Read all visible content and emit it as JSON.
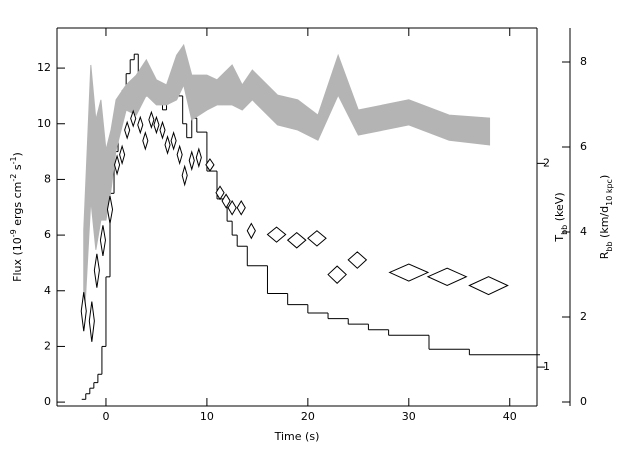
{
  "chart_data": [
    {
      "type": "histogram",
      "bins": [
        -2.4,
        -2,
        -1.6,
        -1.2,
        -0.8,
        -0.4,
        0,
        0.4,
        0.8,
        1.2,
        1.6,
        2,
        2.4,
        2.8,
        3.2,
        3.6,
        4,
        4.4,
        4.8,
        5.2,
        5.6,
        6,
        6.4,
        6.8,
        7.2,
        7.6,
        8,
        8.5,
        9,
        10,
        11,
        12,
        12.5,
        13,
        14,
        16,
        18,
        20,
        22,
        24,
        26,
        28,
        32,
        36,
        43
      ],
      "values": [
        0.1,
        0.3,
        0.5,
        0.7,
        1.0,
        2.0,
        4.5,
        7.5,
        9.0,
        10.5,
        11.2,
        11.8,
        12.3,
        12.5,
        11.8,
        11.5,
        11.0,
        11.5,
        10.8,
        11.2,
        10.5,
        10.9,
        11.5,
        11.8,
        11.0,
        10.0,
        9.5,
        10.2,
        9.7,
        8.3,
        7.3,
        6.5,
        6.0,
        5.6,
        4.9,
        3.9,
        3.5,
        3.2,
        3.0,
        2.8,
        2.6,
        2.4,
        1.9,
        1.7
      ],
      "color": "#000000",
      "xlim": [
        -4.85,
        42.7
      ],
      "xticks": [
        0,
        10,
        20,
        30,
        40
      ],
      "xlabel": "Time (s)",
      "ylim": [
        -0.14,
        13.44
      ],
      "yticks": [
        0,
        2,
        4,
        6,
        8,
        10,
        12
      ],
      "ylabel": [
        "Flux (10",
        "-9",
        " ergs cm",
        "-2",
        " s",
        "-1",
        ")"
      ]
    },
    {
      "type": "band",
      "x": [
        -2.2,
        -1.5,
        -1,
        -0.5,
        0,
        0.5,
        1,
        2,
        3,
        4,
        5,
        6,
        7,
        7.7,
        8.5,
        10,
        11,
        12.5,
        13.5,
        14.5,
        17,
        19,
        21,
        23,
        25,
        30,
        34,
        38
      ],
      "upper": [
        4.05,
        7.93,
        6.64,
        7.11,
        5.93,
        6.4,
        7.11,
        7.46,
        7.69,
        8.05,
        7.58,
        7.46,
        8.16,
        8.4,
        7.69,
        7.69,
        7.58,
        7.93,
        7.46,
        7.81,
        7.22,
        7.11,
        6.75,
        8.16,
        6.87,
        7.11,
        6.75,
        6.68
      ],
      "lower": [
        1.69,
        4.75,
        3.58,
        4.28,
        4.28,
        4.99,
        5.93,
        6.87,
        6.75,
        7.22,
        6.99,
        6.99,
        7.11,
        7.46,
        6.64,
        6.87,
        6.99,
        6.99,
        6.87,
        7.11,
        6.52,
        6.4,
        6.16,
        7.22,
        6.28,
        6.52,
        6.16,
        6.05
      ],
      "color": "#b4b4b4",
      "ylim": [
        -0.094,
        8.8
      ],
      "yticks": [
        0,
        2,
        4,
        6,
        8
      ],
      "ylabel": [
        "R",
        "bb",
        " (km/d",
        "10 kpc",
        ")"
      ]
    },
    {
      "type": "scatter",
      "marker": "diamond",
      "log": true,
      "x": [
        -2.2,
        -1.4,
        -0.9,
        -0.3,
        0.4,
        1.1,
        1.6,
        2.1,
        2.7,
        3.4,
        3.9,
        4.5,
        5.0,
        5.6,
        6.1,
        6.7,
        7.3,
        7.8,
        8.5,
        9.2,
        10.3,
        11.3,
        11.9,
        12.5,
        13.4,
        14.4,
        16.9,
        18.9,
        20.9,
        22.9,
        24.9,
        30.0,
        33.8,
        37.9
      ],
      "values": [
        1.21,
        1.17,
        1.39,
        1.54,
        1.71,
        1.99,
        2.06,
        2.24,
        2.33,
        2.28,
        2.16,
        2.32,
        2.28,
        2.24,
        2.13,
        2.16,
        2.06,
        1.92,
        2.02,
        2.04,
        1.99,
        1.81,
        1.76,
        1.72,
        1.72,
        1.59,
        1.57,
        1.54,
        1.55,
        1.37,
        1.44,
        1.38,
        1.36,
        1.32
      ],
      "xerr": [
        0.25,
        0.25,
        0.25,
        0.25,
        0.25,
        0.25,
        0.25,
        0.25,
        0.25,
        0.25,
        0.25,
        0.25,
        0.25,
        0.25,
        0.25,
        0.25,
        0.25,
        0.25,
        0.25,
        0.25,
        0.4,
        0.4,
        0.4,
        0.4,
        0.4,
        0.4,
        0.9,
        0.9,
        0.9,
        0.9,
        0.9,
        1.9,
        1.9,
        1.9
      ],
      "yerr": [
        0.08,
        0.08,
        0.08,
        0.08,
        0.08,
        0.06,
        0.06,
        0.06,
        0.06,
        0.06,
        0.06,
        0.06,
        0.06,
        0.06,
        0.06,
        0.06,
        0.06,
        0.06,
        0.06,
        0.06,
        0.04,
        0.04,
        0.04,
        0.04,
        0.04,
        0.04,
        0.04,
        0.04,
        0.04,
        0.04,
        0.04,
        0.04,
        0.04,
        0.04
      ],
      "color": "#000000",
      "ylim": [
        0.876,
        3.17
      ],
      "yticks": [
        1,
        2
      ],
      "ylabel": [
        "T",
        "bb",
        " (keV)"
      ]
    }
  ]
}
